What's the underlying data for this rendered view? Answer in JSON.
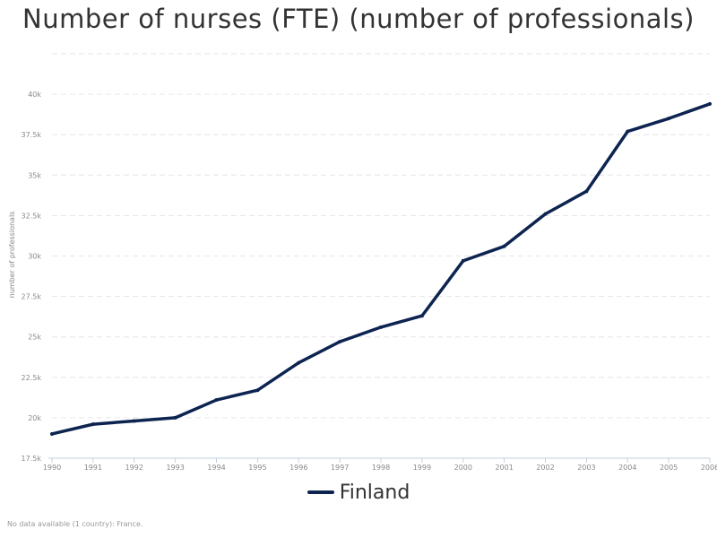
{
  "colors": {
    "series": "#0d2451",
    "grid": "#e6e6e6",
    "tick_text": "#888888"
  },
  "chart_data": {
    "type": "line",
    "title": "Number of nurses (FTE) (number of professionals)",
    "ylabel": "number of professionals",
    "xlabel": "",
    "x": [
      "1990",
      "1991",
      "1992",
      "1993",
      "1994",
      "1995",
      "1996",
      "1997",
      "1998",
      "1999",
      "2000",
      "2001",
      "2002",
      "2003",
      "2004",
      "2005",
      "2006"
    ],
    "series": [
      {
        "name": "Finland",
        "values": [
          19000,
          19600,
          19800,
          20000,
          21100,
          21700,
          23400,
          24700,
          25600,
          26300,
          29700,
          30600,
          32600,
          34000,
          37700,
          38500,
          39400
        ]
      }
    ],
    "ylim": [
      17500,
      42500
    ],
    "yticks": [
      17500,
      20000,
      22500,
      25000,
      27500,
      30000,
      32500,
      35000,
      37500,
      40000
    ],
    "ytick_labels": [
      "17.5k",
      "20k",
      "22.5k",
      "25k",
      "27.5k",
      "30k",
      "32.5k",
      "35k",
      "37.5k",
      "40k"
    ],
    "grid": true,
    "legend_position": "bottom-center"
  },
  "footnote": "No data available (1 country): France."
}
